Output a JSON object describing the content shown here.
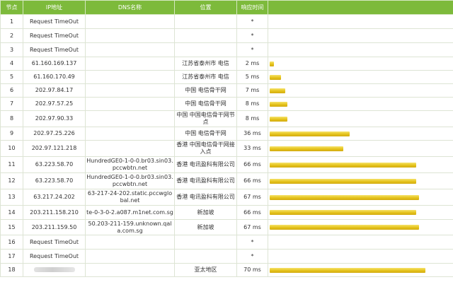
{
  "headers": [
    "节点",
    "IP地址",
    "DNS名称",
    "位置",
    "响应时间",
    ""
  ],
  "bar_color": "#e5c21a",
  "header_color": "#7dba3b",
  "max_ms": 70,
  "rows": [
    {
      "hop": "1",
      "ip": "Request TimeOut",
      "dns": "",
      "location": "",
      "time": "*",
      "ms": 0
    },
    {
      "hop": "2",
      "ip": "Request TimeOut",
      "dns": "",
      "location": "",
      "time": "*",
      "ms": 0
    },
    {
      "hop": "3",
      "ip": "Request TimeOut",
      "dns": "",
      "location": "",
      "time": "*",
      "ms": 0
    },
    {
      "hop": "4",
      "ip": "61.160.169.137",
      "dns": "",
      "location": "江苏省泰州市 电信",
      "time": "2 ms",
      "ms": 2
    },
    {
      "hop": "5",
      "ip": "61.160.170.49",
      "dns": "",
      "location": "江苏省泰州市 电信",
      "time": "5 ms",
      "ms": 5
    },
    {
      "hop": "6",
      "ip": "202.97.84.17",
      "dns": "",
      "location": "中国 电信骨干网",
      "time": "7 ms",
      "ms": 7
    },
    {
      "hop": "7",
      "ip": "202.97.57.25",
      "dns": "",
      "location": "中国 电信骨干网",
      "time": "8 ms",
      "ms": 8
    },
    {
      "hop": "8",
      "ip": "202.97.90.33",
      "dns": "",
      "location": "中国 中国电信骨干网节点",
      "time": "8 ms",
      "ms": 8
    },
    {
      "hop": "9",
      "ip": "202.97.25.226",
      "dns": "",
      "location": "中国 电信骨干网",
      "time": "36 ms",
      "ms": 36
    },
    {
      "hop": "10",
      "ip": "202.97.121.218",
      "dns": "",
      "location": "香港 中国电信骨干网接入点",
      "time": "33 ms",
      "ms": 33
    },
    {
      "hop": "11",
      "ip": "63.223.58.70",
      "dns": "HundredGE0-1-0-0.br03.sin03.pccwbtn.net",
      "location": "香港 电讯盈科有限公司",
      "time": "66 ms",
      "ms": 66
    },
    {
      "hop": "12",
      "ip": "63.223.58.70",
      "dns": "HundredGE0-1-0-0.br03.sin03.pccwbtn.net",
      "location": "香港 电讯盈科有限公司",
      "time": "66 ms",
      "ms": 66
    },
    {
      "hop": "13",
      "ip": "63.217.24.202",
      "dns": "63-217-24-202.static.pccwglobal.net",
      "location": "香港 电讯盈科有限公司",
      "time": "67 ms",
      "ms": 67
    },
    {
      "hop": "14",
      "ip": "203.211.158.210",
      "dns": "te-0-3-0-2.a087.m1net.com.sg",
      "location": "新加坡",
      "time": "66 ms",
      "ms": 66
    },
    {
      "hop": "15",
      "ip": "203.211.159.50",
      "dns": "50.203-211-159.unknown.qala.com.sg",
      "location": "新加坡",
      "time": "67 ms",
      "ms": 67
    },
    {
      "hop": "16",
      "ip": "Request TimeOut",
      "dns": "",
      "location": "",
      "time": "*",
      "ms": 0
    },
    {
      "hop": "17",
      "ip": "Request TimeOut",
      "dns": "",
      "location": "",
      "time": "*",
      "ms": 0
    },
    {
      "hop": "18",
      "ip": "",
      "ip_redacted": true,
      "dns": "",
      "location": "亚太地区",
      "time": "70 ms",
      "ms": 70
    }
  ]
}
